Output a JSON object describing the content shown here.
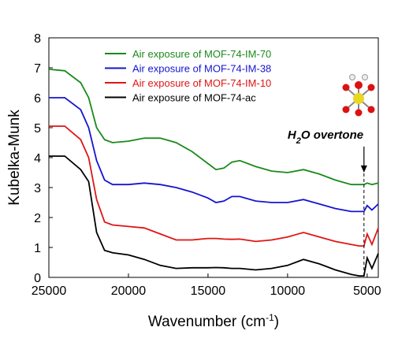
{
  "chart_data": {
    "type": "line",
    "x_label": [
      "Wavenumber (cm",
      "-1",
      ")"
    ],
    "y_label": "Kubelka-Munk",
    "annotation": [
      "H",
      "2",
      "O overtone"
    ],
    "annotation_x": 5200,
    "x": [
      25000,
      24000,
      23000,
      22500,
      22000,
      21500,
      21000,
      20000,
      19000,
      18000,
      17000,
      16000,
      15000,
      14500,
      14000,
      13500,
      13000,
      12000,
      11000,
      10000,
      9000,
      8000,
      7000,
      6000,
      5500,
      5200,
      5000,
      4700,
      4300
    ],
    "series": [
      {
        "name": "Air exposure of MOF-74-IM-70",
        "color": "#1a8a1a",
        "values": [
          6.95,
          6.9,
          6.5,
          6.0,
          5.0,
          4.6,
          4.5,
          4.55,
          4.65,
          4.65,
          4.5,
          4.2,
          3.8,
          3.6,
          3.65,
          3.85,
          3.9,
          3.7,
          3.55,
          3.5,
          3.6,
          3.45,
          3.25,
          3.1,
          3.1,
          3.1,
          3.15,
          3.1,
          3.15
        ]
      },
      {
        "name": "Air exposure of MOF-74-IM-38",
        "color": "#1515d0",
        "values": [
          6.0,
          6.0,
          5.6,
          5.0,
          3.9,
          3.25,
          3.1,
          3.1,
          3.15,
          3.1,
          3.0,
          2.85,
          2.65,
          2.5,
          2.55,
          2.7,
          2.7,
          2.55,
          2.5,
          2.5,
          2.6,
          2.45,
          2.3,
          2.2,
          2.2,
          2.2,
          2.4,
          2.25,
          2.45
        ]
      },
      {
        "name": "Air exposure of MOF-74-IM-10",
        "color": "#e01515",
        "values": [
          5.05,
          5.05,
          4.6,
          4.0,
          2.6,
          1.85,
          1.75,
          1.7,
          1.65,
          1.45,
          1.25,
          1.25,
          1.3,
          1.3,
          1.28,
          1.27,
          1.28,
          1.2,
          1.25,
          1.35,
          1.5,
          1.35,
          1.2,
          1.1,
          1.05,
          1.05,
          1.45,
          1.1,
          1.65
        ]
      },
      {
        "name": "Air exposure of MOF-74-ac",
        "color": "#000000",
        "values": [
          4.05,
          4.05,
          3.6,
          3.2,
          1.5,
          0.9,
          0.82,
          0.75,
          0.6,
          0.4,
          0.3,
          0.32,
          0.32,
          0.33,
          0.32,
          0.3,
          0.3,
          0.25,
          0.3,
          0.4,
          0.6,
          0.45,
          0.25,
          0.1,
          0.05,
          0.05,
          0.65,
          0.3,
          0.8
        ]
      }
    ],
    "xlim": [
      25000,
      4300
    ],
    "xticks": [
      25000,
      20000,
      15000,
      10000,
      5000
    ],
    "ylim": [
      0,
      8
    ],
    "yticks": [
      0,
      1,
      2,
      3,
      4,
      5,
      6,
      7,
      8
    ],
    "legend": "upper left"
  }
}
